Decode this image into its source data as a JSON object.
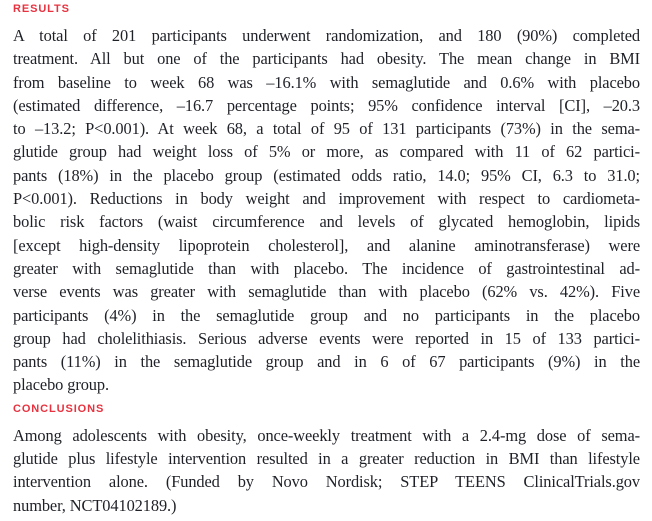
{
  "colors": {
    "background": "#ffffff",
    "body_text": "#1f2128",
    "heading_red": "#e8323f"
  },
  "sections": [
    {
      "heading": "RESULTS",
      "lines": [
        "A total of 201 participants underwent randomization, and 180 (90%) completed",
        "treatment. All but one of the participants had obesity. The mean change in BMI",
        "from baseline to week 68 was –16.1% with semaglutide and 0.6% with placebo",
        "(estimated difference, –16.7 percentage points; 95% confidence interval [CI], –20.3",
        "to –13.2; P<0.001). At week 68, a total of 95 of 131 participants (73%) in the sema-",
        "glutide group had weight loss of 5% or more, as compared with 11 of 62 partici-",
        "pants (18%) in the placebo group (estimated odds ratio, 14.0; 95% CI, 6.3 to 31.0;",
        "P<0.001). Reductions in body weight and improvement with respect to cardiometa-",
        "bolic risk factors (waist circumference and levels of glycated hemoglobin, lipids",
        "[except high-density lipoprotein cholesterol], and alanine aminotransferase) were",
        "greater with semaglutide than with placebo. The incidence of gastrointestinal ad-",
        "verse events was greater with semaglutide than with placebo (62% vs. 42%). Five",
        "participants (4%) in the semaglutide group and no participants in the placebo",
        "group had cholelithiasis. Serious adverse events were reported in 15 of 133 partici-",
        "pants (11%) in the semaglutide group and in 6 of 67 participants (9%) in the",
        "placebo group."
      ]
    },
    {
      "heading": "CONCLUSIONS",
      "lines": [
        "Among adolescents with obesity, once-weekly treatment with a 2.4-mg dose of sema-",
        "glutide plus lifestyle intervention resulted in a greater reduction in BMI than lifestyle",
        "intervention alone. (Funded by Novo Nordisk; STEP TEENS ClinicalTrials.gov",
        "number, NCT04102189.)"
      ]
    }
  ]
}
